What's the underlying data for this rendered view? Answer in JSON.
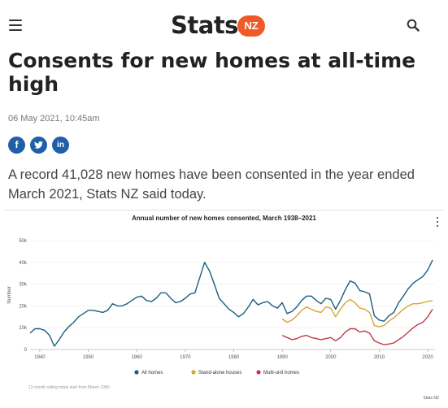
{
  "header": {
    "logo_word": "Stats",
    "logo_badge": "NZ",
    "menu_icon": "hamburger-menu-icon",
    "search_icon": "search-icon"
  },
  "article": {
    "title": "Consents for new homes at all-time high",
    "date": "06 May 2021, 10:45am",
    "share": [
      {
        "label": "f",
        "icon": "facebook-icon",
        "color": "#1f5fa8"
      },
      {
        "label": "t",
        "icon": "twitter-icon",
        "color": "#1f5fa8"
      },
      {
        "label": "in",
        "icon": "linkedin-icon",
        "color": "#1f5fa8"
      }
    ],
    "lead": "A record 41,028 new homes have been consented in the year ended March 2021, Stats NZ said today."
  },
  "chart": {
    "menu_icon": "more-options-icon",
    "note": "12-month rolling totals start from March 1990.",
    "credit": "Stats NZ"
  },
  "chart_data": {
    "type": "line",
    "title": "Annual number of new homes consented, March 1938–2021",
    "xlabel": "",
    "ylabel": "Number",
    "xlim": [
      1938,
      2021.5
    ],
    "ylim": [
      0,
      50000
    ],
    "x_ticks": [
      "1940",
      "1950",
      "1960",
      "1970",
      "1980",
      "1990",
      "2000",
      "2010",
      "2020"
    ],
    "y_ticks": [
      "0",
      "10k",
      "20k",
      "30k",
      "40k",
      "50k"
    ],
    "grid": true,
    "legend_position": "bottom",
    "series": [
      {
        "name": "All homes",
        "color": "#1a5f80",
        "points": [
          [
            1938,
            7500
          ],
          [
            1939,
            9500
          ],
          [
            1940,
            9500
          ],
          [
            1941,
            8800
          ],
          [
            1942,
            6500
          ],
          [
            1943,
            1500
          ],
          [
            1944,
            4500
          ],
          [
            1945,
            8000
          ],
          [
            1946,
            10500
          ],
          [
            1947,
            12500
          ],
          [
            1948,
            15000
          ],
          [
            1949,
            16500
          ],
          [
            1950,
            18000
          ],
          [
            1951,
            18000
          ],
          [
            1952,
            17500
          ],
          [
            1953,
            17000
          ],
          [
            1954,
            18000
          ],
          [
            1955,
            21000
          ],
          [
            1956,
            20000
          ],
          [
            1957,
            20000
          ],
          [
            1958,
            21000
          ],
          [
            1959,
            22500
          ],
          [
            1960,
            24000
          ],
          [
            1961,
            24500
          ],
          [
            1962,
            22500
          ],
          [
            1963,
            22000
          ],
          [
            1964,
            23500
          ],
          [
            1965,
            26000
          ],
          [
            1966,
            26000
          ],
          [
            1967,
            23500
          ],
          [
            1968,
            21500
          ],
          [
            1969,
            22000
          ],
          [
            1970,
            23500
          ],
          [
            1971,
            25500
          ],
          [
            1972,
            26000
          ],
          [
            1973,
            33000
          ],
          [
            1974,
            40000
          ],
          [
            1975,
            36000
          ],
          [
            1976,
            30000
          ],
          [
            1977,
            23500
          ],
          [
            1978,
            21000
          ],
          [
            1979,
            18500
          ],
          [
            1980,
            17000
          ],
          [
            1981,
            15000
          ],
          [
            1982,
            16500
          ],
          [
            1983,
            19500
          ],
          [
            1984,
            23000
          ],
          [
            1985,
            20500
          ],
          [
            1986,
            21500
          ],
          [
            1987,
            22000
          ],
          [
            1988,
            20000
          ],
          [
            1989,
            19000
          ],
          [
            1990,
            21500
          ],
          [
            1991,
            16500
          ],
          [
            1992,
            17500
          ],
          [
            1993,
            19500
          ],
          [
            1994,
            22500
          ],
          [
            1995,
            24500
          ],
          [
            1996,
            24500
          ],
          [
            1997,
            22500
          ],
          [
            1998,
            21000
          ],
          [
            1999,
            23500
          ],
          [
            2000,
            23000
          ],
          [
            2001,
            18500
          ],
          [
            2002,
            22500
          ],
          [
            2003,
            27500
          ],
          [
            2004,
            31500
          ],
          [
            2005,
            30500
          ],
          [
            2006,
            27000
          ],
          [
            2007,
            26500
          ],
          [
            2008,
            25500
          ],
          [
            2009,
            15500
          ],
          [
            2010,
            13500
          ],
          [
            2011,
            13000
          ],
          [
            2012,
            15500
          ],
          [
            2013,
            17000
          ],
          [
            2014,
            21500
          ],
          [
            2015,
            24500
          ],
          [
            2016,
            28000
          ],
          [
            2017,
            30500
          ],
          [
            2018,
            32000
          ],
          [
            2019,
            33500
          ],
          [
            2020,
            36500
          ],
          [
            2021,
            41028
          ]
        ]
      },
      {
        "name": "Stand-alone houses",
        "color": "#d9a431",
        "points": [
          [
            1990,
            14000
          ],
          [
            1991,
            12500
          ],
          [
            1992,
            13500
          ],
          [
            1993,
            15500
          ],
          [
            1994,
            18000
          ],
          [
            1995,
            19500
          ],
          [
            1996,
            18500
          ],
          [
            1997,
            17500
          ],
          [
            1998,
            17000
          ],
          [
            1999,
            19500
          ],
          [
            2000,
            19000
          ],
          [
            2001,
            15000
          ],
          [
            2002,
            18500
          ],
          [
            2003,
            21500
          ],
          [
            2004,
            23000
          ],
          [
            2005,
            21500
          ],
          [
            2006,
            19000
          ],
          [
            2007,
            18500
          ],
          [
            2008,
            17000
          ],
          [
            2009,
            11000
          ],
          [
            2010,
            10500
          ],
          [
            2011,
            11000
          ],
          [
            2012,
            13000
          ],
          [
            2013,
            14500
          ],
          [
            2014,
            16500
          ],
          [
            2015,
            18500
          ],
          [
            2016,
            20000
          ],
          [
            2017,
            21000
          ],
          [
            2018,
            21000
          ],
          [
            2019,
            21500
          ],
          [
            2020,
            22000
          ],
          [
            2021,
            22500
          ]
        ]
      },
      {
        "name": "Multi-unit homes",
        "color": "#c0394a",
        "points": [
          [
            1990,
            6500
          ],
          [
            1991,
            5500
          ],
          [
            1992,
            4500
          ],
          [
            1993,
            5000
          ],
          [
            1994,
            6000
          ],
          [
            1995,
            6500
          ],
          [
            1996,
            5500
          ],
          [
            1997,
            5000
          ],
          [
            1998,
            4500
          ],
          [
            1999,
            5000
          ],
          [
            2000,
            5500
          ],
          [
            2001,
            4000
          ],
          [
            2002,
            5500
          ],
          [
            2003,
            8000
          ],
          [
            2004,
            9500
          ],
          [
            2005,
            9500
          ],
          [
            2006,
            8000
          ],
          [
            2007,
            8500
          ],
          [
            2008,
            7500
          ],
          [
            2009,
            4000
          ],
          [
            2010,
            3000
          ],
          [
            2011,
            2200
          ],
          [
            2012,
            2500
          ],
          [
            2013,
            3000
          ],
          [
            2014,
            4500
          ],
          [
            2015,
            6000
          ],
          [
            2016,
            8000
          ],
          [
            2017,
            10000
          ],
          [
            2018,
            11500
          ],
          [
            2019,
            12500
          ],
          [
            2020,
            15000
          ],
          [
            2021,
            18500
          ]
        ]
      }
    ]
  }
}
